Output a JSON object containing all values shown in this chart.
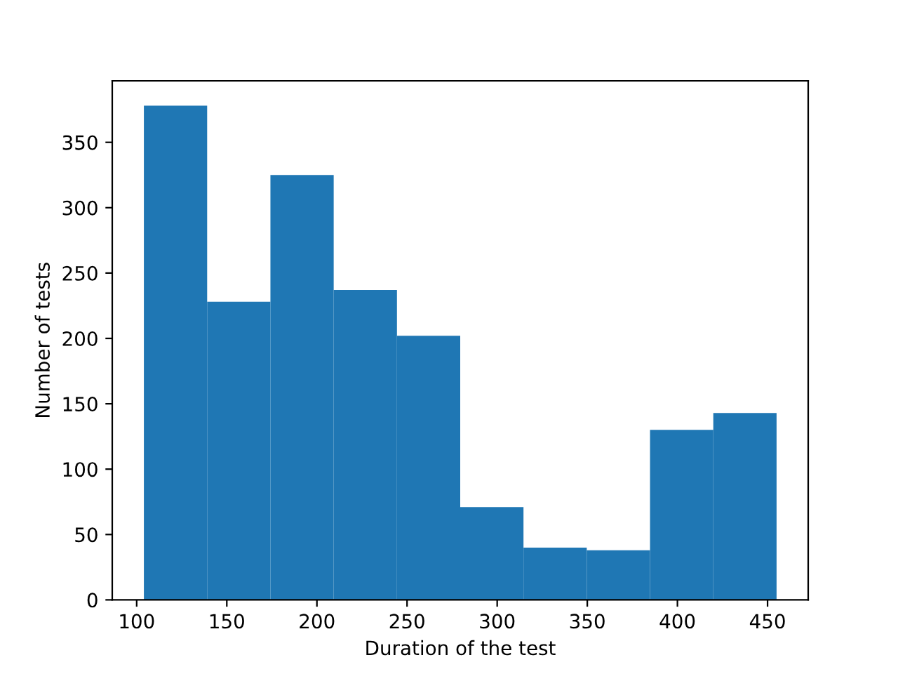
{
  "chart_data": {
    "type": "histogram",
    "xlabel": "Duration of the test",
    "ylabel": "Number of tests",
    "bins": [
      104,
      139.1,
      174.2,
      209.3,
      244.4,
      279.5,
      314.6,
      349.7,
      384.8,
      419.9,
      455
    ],
    "values": [
      378,
      228,
      325,
      237,
      202,
      71,
      40,
      38,
      130,
      143
    ],
    "color": "#1f77b4",
    "xlim": [
      86.45,
      472.55
    ],
    "xticks": [
      100,
      150,
      200,
      250,
      300,
      350,
      400,
      450
    ],
    "ylim": [
      0,
      397
    ],
    "yticks": [
      0,
      50,
      100,
      150,
      200,
      250,
      300,
      350
    ],
    "grid": false
  }
}
